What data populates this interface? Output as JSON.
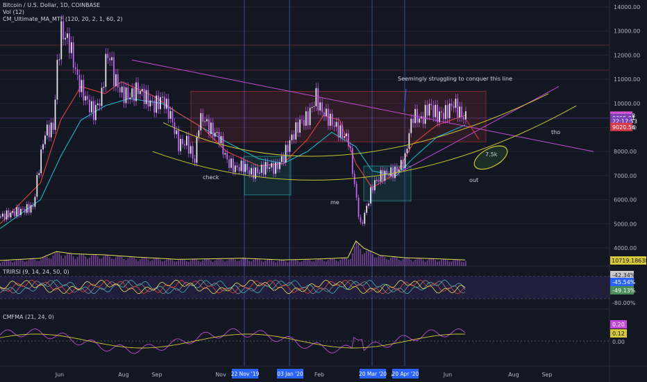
{
  "header": {
    "title": "Bitcoin / U.S. Dollar, 1D, COINBASE",
    "vol": "Vol (12)",
    "ma": "CM_Ultimate_MA_MTF (120, 20, 2, 1, 60, 2)"
  },
  "panes": {
    "rsi_title": "TRIRSI (9, 14, 24, 50, 0)",
    "cmf_title": "CMFMA (21, 24, 0)"
  },
  "colors": {
    "background": "#131722",
    "candle": "#c266f2",
    "ma_fast": "#e0453a",
    "ma_slow": "#19b5c8",
    "arc": "#c9c62e",
    "trend": "#c64ad8",
    "box_red": "#e03a3a",
    "box_teal": "#2bb5aa",
    "vline": "#3b5ea8",
    "axis_text": "#b2b5be"
  },
  "chart_data": {
    "type": "candlestick",
    "x_axis_labels": [
      "Jun",
      "Aug",
      "Sep",
      "Nov",
      "Feb",
      "Apr",
      "Jun",
      "Aug",
      "Sep"
    ],
    "x_axis_date_badges": [
      "22 Nov '19",
      "03 Jan '20",
      "20 Mar '20",
      "20 Apr '20"
    ],
    "price_ticks": [
      4000,
      5000,
      6000,
      7000,
      8000,
      9000,
      10000,
      11000,
      12000,
      13000,
      14000
    ],
    "price_tick_labels": [
      "4000.00",
      "5000.00",
      "6000.00",
      "7000.00",
      "8000.00",
      "9000.00",
      "10000.00",
      "11000.00",
      "12000.00",
      "13000.00",
      "14000.00"
    ],
    "price_range": [
      3300,
      14200
    ],
    "price_badges": [
      {
        "label": "9491.38",
        "value": 9491.38,
        "color": "#d64fd0"
      },
      {
        "label": "9395.01",
        "value": 9395.01,
        "color": "#7d3fb8"
      },
      {
        "label": "22:17:53",
        "value": 9255,
        "color": "#7d3fb8"
      },
      {
        "label": "9020.56",
        "value": 9020.56,
        "color": "#d63a4a"
      }
    ],
    "volume_badge": "10719.186389",
    "close_series": [
      [
        0,
        5300
      ],
      [
        4,
        5500
      ],
      [
        8,
        5700
      ],
      [
        10,
        7900
      ],
      [
        11,
        8800
      ],
      [
        13,
        9000
      ],
      [
        14,
        11500
      ],
      [
        15,
        13000
      ],
      [
        17,
        12500
      ],
      [
        19,
        11000
      ],
      [
        21,
        10200
      ],
      [
        23,
        9600
      ],
      [
        25,
        10300
      ],
      [
        26,
        11800
      ],
      [
        27,
        12000
      ],
      [
        28,
        11100
      ],
      [
        30,
        10400
      ],
      [
        32,
        10300
      ],
      [
        34,
        10600
      ],
      [
        36,
        10200
      ],
      [
        38,
        9900
      ],
      [
        40,
        10200
      ],
      [
        42,
        9500
      ],
      [
        44,
        8300
      ],
      [
        46,
        8400
      ],
      [
        48,
        7600
      ],
      [
        49,
        9200
      ],
      [
        50,
        9400
      ],
      [
        52,
        8900
      ],
      [
        54,
        8600
      ],
      [
        56,
        7600
      ],
      [
        58,
        7300
      ],
      [
        60,
        7400
      ],
      [
        62,
        7100
      ],
      [
        64,
        7200
      ],
      [
        66,
        7400
      ],
      [
        68,
        7300
      ],
      [
        70,
        7800
      ],
      [
        72,
        8600
      ],
      [
        74,
        9200
      ],
      [
        76,
        9400
      ],
      [
        78,
        10300
      ],
      [
        79,
        9800
      ],
      [
        80,
        9600
      ],
      [
        82,
        9200
      ],
      [
        84,
        8800
      ],
      [
        86,
        8500
      ],
      [
        88,
        6000
      ],
      [
        89,
        4900
      ],
      [
        90,
        5400
      ],
      [
        92,
        6600
      ],
      [
        94,
        7000
      ],
      [
        96,
        7100
      ],
      [
        98,
        7200
      ],
      [
        100,
        7700
      ],
      [
        101,
        8800
      ],
      [
        102,
        9500
      ],
      [
        104,
        9300
      ],
      [
        106,
        9900
      ],
      [
        108,
        9500
      ],
      [
        110,
        9600
      ],
      [
        112,
        10000
      ],
      [
        114,
        9500
      ],
      [
        115,
        9400
      ]
    ],
    "ma_fast_series": [
      [
        0,
        5000
      ],
      [
        10,
        6700
      ],
      [
        15,
        9300
      ],
      [
        20,
        10700
      ],
      [
        26,
        10400
      ],
      [
        30,
        10900
      ],
      [
        38,
        10300
      ],
      [
        44,
        9600
      ],
      [
        50,
        9000
      ],
      [
        56,
        8000
      ],
      [
        64,
        7400
      ],
      [
        70,
        7500
      ],
      [
        76,
        8500
      ],
      [
        80,
        9500
      ],
      [
        84,
        9300
      ],
      [
        88,
        7500
      ],
      [
        92,
        6500
      ],
      [
        98,
        7100
      ],
      [
        102,
        8300
      ],
      [
        108,
        9100
      ],
      [
        115,
        9500
      ]
    ],
    "ma_slow_series": [
      [
        0,
        4800
      ],
      [
        10,
        6000
      ],
      [
        15,
        7800
      ],
      [
        20,
        9300
      ],
      [
        26,
        9900
      ],
      [
        32,
        10200
      ],
      [
        40,
        10000
      ],
      [
        48,
        9200
      ],
      [
        56,
        8400
      ],
      [
        64,
        7700
      ],
      [
        70,
        7500
      ],
      [
        76,
        8000
      ],
      [
        82,
        8800
      ],
      [
        88,
        8200
      ],
      [
        92,
        7200
      ],
      [
        98,
        7000
      ],
      [
        102,
        7700
      ],
      [
        108,
        8600
      ],
      [
        115,
        9100
      ]
    ],
    "volume_series": [
      [
        0,
        1.0
      ],
      [
        10,
        1.4
      ],
      [
        14,
        2.6
      ],
      [
        18,
        2.2
      ],
      [
        26,
        2.0
      ],
      [
        34,
        1.6
      ],
      [
        44,
        1.2
      ],
      [
        52,
        1.3
      ],
      [
        60,
        1.4
      ],
      [
        70,
        1.1
      ],
      [
        80,
        1.3
      ],
      [
        86,
        1.5
      ],
      [
        88,
        4.5
      ],
      [
        90,
        3.2
      ],
      [
        94,
        1.9
      ],
      [
        100,
        1.5
      ],
      [
        108,
        1.3
      ],
      [
        115,
        1.1
      ]
    ],
    "annotations": [
      {
        "text": "Seemingly struggling to conquer this line"
      },
      {
        "text": "check"
      },
      {
        "text": "me"
      },
      {
        "text": "out"
      },
      {
        "text": "tho"
      },
      {
        "text": "7.5k"
      }
    ],
    "rsi_ticks": [
      {
        "label": "-42.34%",
        "color": "#c9c9c9",
        "textcolor": "#131722"
      },
      {
        "label": "-45.54%",
        "color": "#2962ff",
        "textcolor": "#ffffff"
      },
      {
        "label": "-49.13%",
        "color": "#4a8d5c",
        "textcolor": "#ffffff"
      },
      {
        "label": "-80.00%",
        "color": "none",
        "textcolor": "#b2b5be"
      }
    ],
    "cmf_ticks": [
      {
        "label": "0.20",
        "color": "#c24ad8",
        "textcolor": "#ffffff"
      },
      {
        "label": "0.12",
        "color": "#d7c73a",
        "textcolor": "#131722"
      },
      {
        "label": "0.00",
        "color": "none",
        "textcolor": "#b2b5be"
      }
    ]
  }
}
